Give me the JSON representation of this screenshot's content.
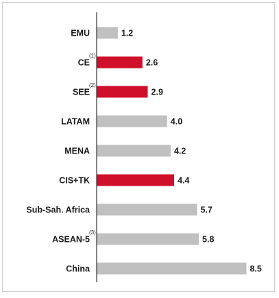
{
  "chart_data": {
    "type": "bar",
    "orientation": "horizontal",
    "categories": [
      "EMU",
      "CE",
      "SEE",
      "LATAM",
      "MENA",
      "CIS+TK",
      "Sub-Sah. Africa",
      "ASEAN-5",
      "China"
    ],
    "category_footnotes": [
      "",
      "(1)",
      "(2)",
      "",
      "",
      "",
      "",
      "(3)",
      ""
    ],
    "values": [
      1.2,
      2.6,
      2.9,
      4.0,
      4.2,
      4.4,
      5.7,
      5.8,
      8.5
    ],
    "value_labels": [
      "1.2",
      "2.6",
      "2.9",
      "4.0",
      "4.2",
      "4.4",
      "5.7",
      "5.8",
      "8.5"
    ],
    "highlighted": [
      false,
      true,
      true,
      false,
      false,
      true,
      false,
      false,
      false
    ],
    "colors": {
      "default": "#c0c0c0",
      "highlight": "#d0102a",
      "axis": "#333333",
      "frame": "#cfcfcf"
    },
    "title": "",
    "xlabel": "",
    "ylabel": "",
    "xlim": [
      0,
      9
    ],
    "grid": false,
    "legend": "none"
  }
}
